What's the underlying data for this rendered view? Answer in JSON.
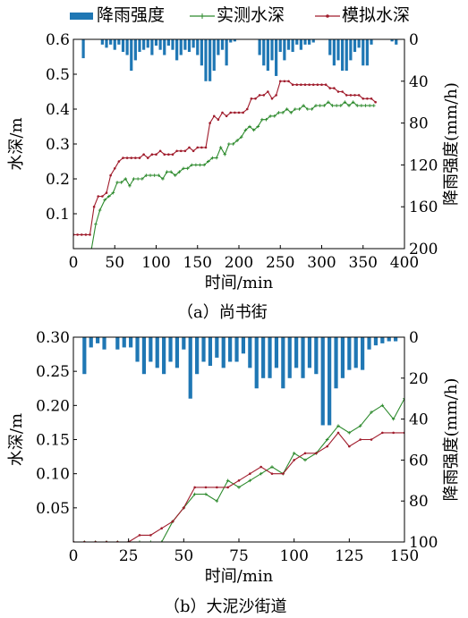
{
  "legend": {
    "rain": "降雨强度",
    "measured": "实测水深",
    "simulated": "模拟水深"
  },
  "colors": {
    "rain": "#1f77b4",
    "measured": "#2e8b2e",
    "simulated": "#a01c2c"
  },
  "captions": {
    "a": "（a）尚书街",
    "b": "（b）大泥沙街道"
  },
  "chart_data": [
    {
      "type": "line",
      "caption": "（a）尚书街",
      "xlabel": "时间/min",
      "ylabel": "水深/m",
      "y2label": "降雨强度(mm/h)",
      "xlim": [
        0,
        400
      ],
      "ylim": [
        0,
        0.6
      ],
      "y2lim": [
        200,
        0
      ],
      "xticks": [
        "0",
        "50",
        "100",
        "150",
        "200",
        "250",
        "300",
        "350",
        "400"
      ],
      "yticks": [
        "0.1",
        "0.2",
        "0.3",
        "0.4",
        "0.5",
        "0.6"
      ],
      "y2ticks": [
        "0",
        "40",
        "80",
        "120",
        "160",
        "200"
      ],
      "rain": {
        "name": "降雨强度",
        "x": [
          12,
          35,
          40,
          45,
          50,
          55,
          60,
          65,
          70,
          75,
          80,
          85,
          90,
          95,
          100,
          105,
          110,
          115,
          120,
          125,
          130,
          135,
          140,
          145,
          150,
          155,
          160,
          165,
          170,
          175,
          180,
          185,
          190,
          195,
          225,
          230,
          235,
          240,
          245,
          250,
          255,
          260,
          265,
          270,
          275,
          280,
          285,
          290,
          310,
          315,
          320,
          325,
          330,
          335,
          340,
          345,
          350,
          355,
          360,
          385,
          390
        ],
        "values": [
          18,
          5,
          8,
          5,
          10,
          5,
          12,
          15,
          30,
          20,
          12,
          10,
          8,
          15,
          6,
          10,
          15,
          6,
          10,
          20,
          15,
          10,
          12,
          8,
          15,
          25,
          40,
          40,
          30,
          15,
          10,
          25,
          3,
          2,
          15,
          25,
          30,
          20,
          35,
          12,
          20,
          10,
          12,
          5,
          10,
          5,
          5,
          3,
          15,
          25,
          20,
          30,
          30,
          20,
          12,
          8,
          25,
          25,
          5,
          2,
          5
        ]
      },
      "series": [
        {
          "name": "实测水深",
          "x": [
            22,
            27,
            32,
            38,
            43,
            48,
            53,
            58,
            63,
            68,
            73,
            78,
            83,
            88,
            93,
            98,
            103,
            108,
            113,
            118,
            123,
            128,
            133,
            138,
            143,
            148,
            153,
            158,
            163,
            168,
            173,
            178,
            183,
            188,
            193,
            198,
            203,
            208,
            213,
            218,
            223,
            228,
            233,
            238,
            243,
            248,
            253,
            258,
            263,
            268,
            273,
            278,
            283,
            288,
            293,
            298,
            303,
            308,
            313,
            318,
            323,
            328,
            333,
            338,
            343,
            348,
            353,
            358,
            363
          ],
          "values": [
            0.0,
            0.07,
            0.11,
            0.14,
            0.15,
            0.16,
            0.19,
            0.19,
            0.2,
            0.18,
            0.2,
            0.2,
            0.2,
            0.21,
            0.21,
            0.21,
            0.21,
            0.2,
            0.22,
            0.22,
            0.21,
            0.22,
            0.23,
            0.23,
            0.24,
            0.24,
            0.24,
            0.24,
            0.25,
            0.26,
            0.26,
            0.29,
            0.27,
            0.3,
            0.3,
            0.31,
            0.32,
            0.34,
            0.35,
            0.34,
            0.35,
            0.37,
            0.37,
            0.38,
            0.38,
            0.39,
            0.39,
            0.4,
            0.39,
            0.4,
            0.4,
            0.41,
            0.4,
            0.4,
            0.41,
            0.41,
            0.41,
            0.42,
            0.41,
            0.41,
            0.41,
            0.42,
            0.41,
            0.42,
            0.41,
            0.41,
            0.41,
            0.41,
            0.41
          ]
        },
        {
          "name": "模拟水深",
          "x": [
            0,
            5,
            10,
            15,
            20,
            25,
            30,
            35,
            40,
            45,
            50,
            55,
            60,
            65,
            70,
            75,
            80,
            85,
            90,
            95,
            100,
            105,
            110,
            115,
            120,
            125,
            130,
            135,
            140,
            145,
            150,
            155,
            160,
            165,
            170,
            175,
            180,
            185,
            190,
            195,
            200,
            205,
            210,
            215,
            220,
            225,
            230,
            235,
            240,
            245,
            250,
            255,
            260,
            265,
            270,
            275,
            280,
            285,
            290,
            295,
            300,
            305,
            310,
            315,
            320,
            325,
            330,
            335,
            340,
            345,
            350,
            355,
            360,
            365
          ],
          "values": [
            0.04,
            0.04,
            0.04,
            0.04,
            0.04,
            0.12,
            0.15,
            0.15,
            0.16,
            0.21,
            0.23,
            0.25,
            0.26,
            0.26,
            0.26,
            0.26,
            0.26,
            0.27,
            0.26,
            0.27,
            0.27,
            0.28,
            0.27,
            0.27,
            0.27,
            0.28,
            0.28,
            0.28,
            0.29,
            0.28,
            0.29,
            0.29,
            0.29,
            0.36,
            0.38,
            0.37,
            0.39,
            0.38,
            0.39,
            0.39,
            0.39,
            0.39,
            0.4,
            0.43,
            0.43,
            0.44,
            0.44,
            0.45,
            0.43,
            0.44,
            0.48,
            0.48,
            0.48,
            0.47,
            0.47,
            0.47,
            0.47,
            0.47,
            0.47,
            0.47,
            0.47,
            0.47,
            0.46,
            0.46,
            0.45,
            0.45,
            0.44,
            0.44,
            0.44,
            0.44,
            0.43,
            0.43,
            0.43,
            0.42
          ]
        }
      ]
    },
    {
      "type": "line",
      "caption": "（b）大泥沙街道",
      "xlabel": "时间/min",
      "ylabel": "水深/m",
      "y2label": "降雨强度(mm/h)",
      "xlim": [
        0,
        150
      ],
      "ylim": [
        0,
        0.3
      ],
      "y2lim": [
        100,
        0
      ],
      "xticks": [
        "0",
        "25",
        "50",
        "75",
        "100",
        "125",
        "150"
      ],
      "yticks": [
        "0.05",
        "0.10",
        "0.15",
        "0.20",
        "0.25",
        "0.30"
      ],
      "y2ticks": [
        "0",
        "20",
        "40",
        "60",
        "80",
        "100"
      ],
      "rain": {
        "name": "降雨强度",
        "x": [
          5,
          8,
          11,
          14,
          20,
          23,
          26,
          29,
          32,
          35,
          38,
          41,
          44,
          47,
          50,
          53,
          56,
          59,
          62,
          65,
          68,
          71,
          74,
          77,
          80,
          83,
          86,
          89,
          92,
          95,
          98,
          101,
          104,
          107,
          110,
          113,
          116,
          119,
          122,
          125,
          128,
          131,
          134,
          137,
          140,
          143,
          146
        ],
        "values": [
          18,
          5,
          3,
          6,
          6,
          5,
          5,
          12,
          18,
          12,
          15,
          18,
          12,
          15,
          6,
          30,
          18,
          12,
          14,
          10,
          15,
          12,
          12,
          8,
          15,
          25,
          20,
          20,
          15,
          25,
          20,
          15,
          20,
          15,
          18,
          43,
          43,
          25,
          20,
          16,
          15,
          16,
          6,
          4,
          3,
          2,
          2
        ]
      },
      "series": [
        {
          "name": "实测水深",
          "x": [
            0,
            5,
            10,
            15,
            20,
            25,
            30,
            35,
            40,
            45,
            50,
            55,
            60,
            65,
            70,
            75,
            80,
            85,
            90,
            95,
            100,
            105,
            110,
            115,
            120,
            125,
            130,
            135,
            140,
            145,
            150
          ],
          "values": [
            0.0,
            0.0,
            0.0,
            0.0,
            0.0,
            0.0,
            0.0,
            0.0,
            0.0,
            0.03,
            0.05,
            0.07,
            0.07,
            0.06,
            0.09,
            0.08,
            0.09,
            0.1,
            0.11,
            0.1,
            0.13,
            0.12,
            0.13,
            0.15,
            0.17,
            0.16,
            0.17,
            0.19,
            0.2,
            0.18,
            0.21
          ]
        },
        {
          "name": "模拟水深",
          "x": [
            0,
            5,
            10,
            15,
            20,
            25,
            30,
            35,
            40,
            45,
            50,
            55,
            60,
            65,
            70,
            75,
            80,
            85,
            90,
            95,
            100,
            105,
            110,
            115,
            120,
            125,
            130,
            135,
            140,
            145,
            150
          ],
          "values": [
            0.0,
            0.0,
            0.0,
            0.0,
            0.0,
            0.0,
            0.01,
            0.01,
            0.02,
            0.03,
            0.05,
            0.08,
            0.08,
            0.08,
            0.08,
            0.09,
            0.1,
            0.11,
            0.1,
            0.1,
            0.12,
            0.13,
            0.13,
            0.14,
            0.16,
            0.14,
            0.15,
            0.15,
            0.16,
            0.16,
            0.16
          ]
        }
      ]
    }
  ]
}
